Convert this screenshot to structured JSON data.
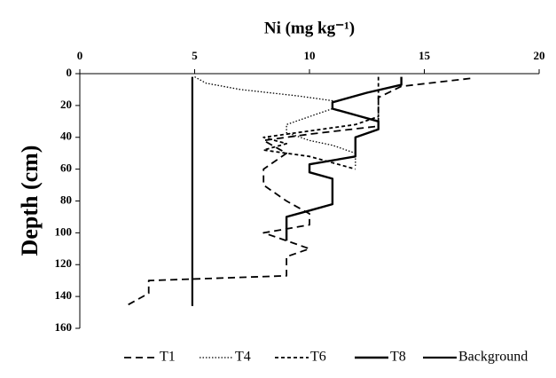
{
  "chart_data": {
    "type": "line",
    "title": "Ni (mg kg⁻¹)",
    "ylabel": "Depth (cm)",
    "xlim": [
      0,
      20
    ],
    "xticks": [
      0,
      5,
      10,
      15,
      20
    ],
    "ylim": [
      0,
      160
    ],
    "yticks": [
      0,
      20,
      40,
      60,
      80,
      100,
      120,
      140,
      160
    ],
    "y_inverted": true,
    "x_axis_top": true,
    "series": [
      {
        "name": "T1",
        "color": "#000000",
        "dash": "8 5",
        "width": 1.8,
        "depth": [
          3,
          8,
          15,
          25,
          33,
          38,
          42,
          50,
          60,
          70,
          80,
          88,
          95,
          100,
          105,
          110,
          115,
          120,
          127,
          130,
          138,
          146
        ],
        "values": [
          17,
          14,
          13,
          13,
          13,
          10,
          8,
          9,
          8,
          8,
          9,
          10,
          10,
          8,
          9,
          10,
          9,
          9,
          9,
          3,
          3,
          2
        ]
      },
      {
        "name": "T4",
        "color": "#000000",
        "dash": "1.5 2",
        "width": 1.3,
        "depth": [
          2,
          6,
          10,
          14,
          17,
          22,
          27,
          32,
          37,
          42,
          45,
          50,
          58
        ],
        "values": [
          5,
          5.5,
          7,
          9.5,
          11,
          11,
          10,
          9,
          9,
          10,
          11,
          12,
          12
        ]
      },
      {
        "name": "T6",
        "color": "#000000",
        "dash": "4 3",
        "width": 1.8,
        "depth": [
          2,
          10,
          20,
          27,
          32,
          36,
          40,
          44,
          48,
          52,
          56,
          60
        ],
        "values": [
          13,
          13,
          13,
          13,
          12,
          10,
          8,
          9,
          8,
          10,
          11,
          12
        ]
      },
      {
        "name": "T8",
        "color": "#000000",
        "dash": "",
        "width": 2.4,
        "depth": [
          2,
          7,
          12,
          18,
          22,
          26,
          30,
          35,
          40,
          46,
          52,
          57,
          62,
          66,
          72,
          78,
          82,
          86,
          90,
          95,
          105
        ],
        "values": [
          14,
          14,
          12.5,
          11,
          11,
          12,
          13,
          13,
          12,
          12,
          12,
          10,
          10,
          11,
          11,
          11,
          11,
          10,
          9,
          9,
          9
        ]
      },
      {
        "name": "Background",
        "color": "#000000",
        "dash": "",
        "width": 2.2,
        "depth": [
          2,
          146
        ],
        "values": [
          4.9,
          4.9
        ]
      }
    ]
  }
}
